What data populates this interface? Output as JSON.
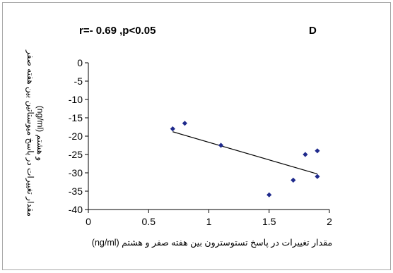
{
  "chart_data": {
    "type": "scatter",
    "annotation_left": "r=- 0.69   ,p<0.05",
    "panel_label": "D",
    "xlabel": "مقدار تغییرات در پاسخ تستوسترون بین هفته صفر و هشتم  (ng/ml)",
    "ylabel_line1": "مقدار تغییرات در پاسخ میوستاتین بین هفته صفر",
    "ylabel_line2": "و هشتم  (ng/ml)",
    "xlim": [
      0,
      2
    ],
    "ylim": [
      -40,
      0
    ],
    "xticks": [
      0,
      0.5,
      1,
      1.5,
      2
    ],
    "xtick_labels": [
      "0",
      "0.5",
      "1",
      "1.5",
      "2"
    ],
    "yticks": [
      0,
      -5,
      -10,
      -15,
      -20,
      -25,
      -30,
      -35,
      -40
    ],
    "ytick_labels": [
      "0",
      "-5",
      "-10",
      "-15",
      "-20",
      "-25",
      "-30",
      "-35",
      "-40"
    ],
    "points": [
      {
        "x": 0.7,
        "y": -18
      },
      {
        "x": 0.8,
        "y": -16.5
      },
      {
        "x": 1.1,
        "y": -22.5
      },
      {
        "x": 1.5,
        "y": -36
      },
      {
        "x": 1.7,
        "y": -32
      },
      {
        "x": 1.8,
        "y": -25
      },
      {
        "x": 1.9,
        "y": -24
      },
      {
        "x": 1.9,
        "y": -31
      }
    ],
    "trendline": {
      "x1": 0.7,
      "y1": -18.8,
      "x2": 1.9,
      "y2": -30.3
    },
    "marker_color": "#1f2a8c",
    "grid": false,
    "legend": "none"
  }
}
